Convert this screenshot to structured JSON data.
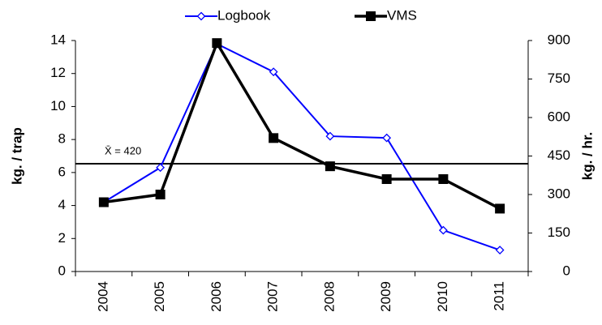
{
  "chart_data": {
    "type": "line",
    "categories": [
      "2004",
      "2005",
      "2006",
      "2007",
      "2008",
      "2009",
      "2010",
      "2011"
    ],
    "series": [
      {
        "name": "Logbook",
        "color": "#0000ff",
        "marker": "diamond",
        "values": [
          4.2,
          6.3,
          13.8,
          12.1,
          8.2,
          8.1,
          2.5,
          1.3
        ]
      },
      {
        "name": "VMS",
        "color": "#000000",
        "marker": "square",
        "axis": "y2",
        "values": [
          270,
          300,
          890,
          520,
          410,
          360,
          360,
          245
        ]
      }
    ],
    "ylabel": "kg. / trap",
    "y2label": "kg. / hr.",
    "ylim": [
      0,
      14
    ],
    "yticks": [
      0,
      2,
      4,
      6,
      8,
      10,
      12,
      14
    ],
    "y2lim": [
      0,
      900
    ],
    "y2ticks": [
      0,
      150,
      300,
      450,
      600,
      750,
      900
    ],
    "mean_line": {
      "value": 420,
      "label": "X̄ = 420",
      "axis": "y2"
    },
    "legend": "top",
    "grid": false
  }
}
